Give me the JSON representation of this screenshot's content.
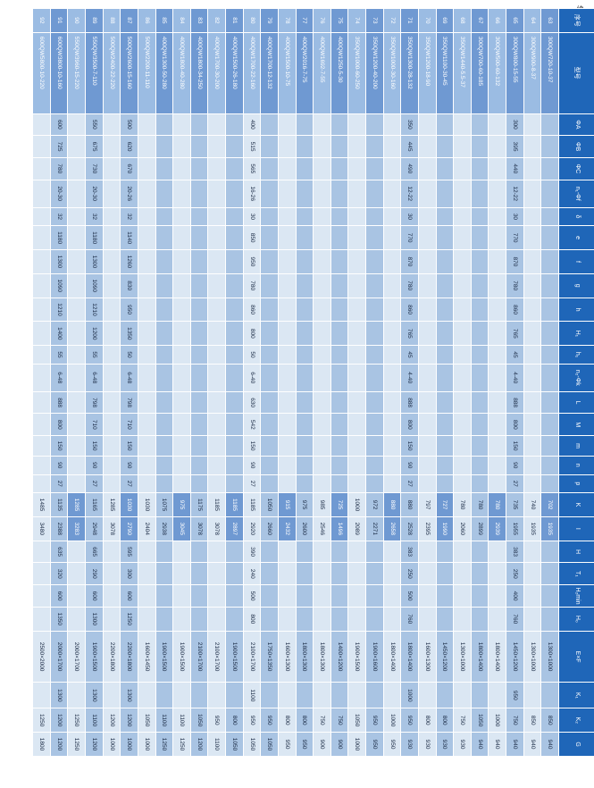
{
  "page_label": "续表",
  "table": {
    "headers": [
      "序号",
      "型号",
      "ΦA",
      "ΦB",
      "ΦC",
      "n₁-Φf",
      "δ",
      "e",
      "f",
      "g",
      "h",
      "H₁",
      "h₁",
      "n₂-Φk",
      "L",
      "M",
      "m",
      "n",
      "p",
      "K",
      "I",
      "H",
      "T₁",
      "H₂min",
      "H₀",
      "E×F",
      "K₁",
      "K₂",
      "G"
    ],
    "rows": [
      [
        "63",
        "300QW720-10-37",
        "",
        "",
        "",
        "",
        "",
        "",
        "",
        "",
        "",
        "",
        "",
        "",
        "",
        "",
        "",
        "",
        "",
        "702",
        "1935",
        "",
        "",
        "",
        "",
        "1300×1000",
        "",
        "850",
        "940"
      ],
      [
        "64",
        "300QW900-8-37",
        "",
        "",
        "",
        "",
        "",
        "",
        "",
        "",
        "",
        "",
        "",
        "",
        "",
        "",
        "",
        "",
        "",
        "740",
        "1935",
        "",
        "",
        "",
        "",
        "1300×1000",
        "",
        "850",
        "940"
      ],
      [
        "65",
        "300QW800-15-55",
        "300",
        "395",
        "440",
        "12-22",
        "30",
        "770",
        "870",
        "780",
        "860",
        "765",
        "45",
        "4-40",
        "888",
        "800",
        "150",
        "90",
        "27",
        "735",
        "1955",
        "383",
        "250",
        "400",
        "760",
        "1450×1200",
        "950",
        "750",
        "940"
      ],
      [
        "66",
        "300QW500-60-132",
        "",
        "",
        "",
        "",
        "",
        "",
        "",
        "",
        "",
        "",
        "",
        "",
        "",
        "",
        "",
        "",
        "",
        "780",
        "2939",
        "",
        "",
        "",
        "",
        "1800×1400",
        "",
        "1000",
        "940"
      ],
      [
        "67",
        "300QW700-60-185",
        "",
        "",
        "",
        "",
        "",
        "",
        "",
        "",
        "",
        "",
        "",
        "",
        "",
        "",
        "",
        "",
        "",
        "780",
        "2899",
        "",
        "",
        "",
        "",
        "1800×1400",
        "",
        "1050",
        "940"
      ],
      [
        "68",
        "350QW1440-5.5-37",
        "",
        "",
        "",
        "",
        "",
        "",
        "",
        "",
        "",
        "",
        "",
        "",
        "",
        "",
        "",
        "",
        "",
        "780",
        "2060",
        "",
        "",
        "",
        "",
        "1300×1000",
        "",
        "750",
        "930"
      ],
      [
        "69",
        "350QW1100-30-45",
        "",
        "",
        "",
        "",
        "",
        "",
        "",
        "",
        "",
        "",
        "",
        "",
        "",
        "",
        "",
        "",
        "",
        "727",
        "1990",
        "",
        "",
        "",
        "",
        "1450×1200",
        "",
        "800",
        "930"
      ],
      [
        "70",
        "350QW1200-18-90",
        "",
        "",
        "",
        "",
        "",
        "",
        "",
        "",
        "",
        "",
        "",
        "",
        "",
        "",
        "",
        "",
        "",
        "797",
        "2395",
        "",
        "",
        "",
        "",
        "1600×1300",
        "",
        "800",
        "930"
      ],
      [
        "71",
        "350QW1300-28-132",
        "350",
        "445",
        "490",
        "12-22",
        "30",
        "770",
        "870",
        "780",
        "860",
        "765",
        "45",
        "4-40",
        "888",
        "800",
        "150",
        "90",
        "27",
        "880",
        "2528",
        "383",
        "250",
        "500",
        "760",
        "1800×1400",
        "1000",
        "950",
        "930"
      ],
      [
        "72",
        "350QW1000-30-160",
        "",
        "",
        "",
        "",
        "",
        "",
        "",
        "",
        "",
        "",
        "",
        "",
        "",
        "",
        "",
        "",
        "",
        "880",
        "2658",
        "",
        "",
        "",
        "",
        "1800×1400",
        "",
        "1000",
        "950"
      ],
      [
        "73",
        "350QW1200-40-200",
        "",
        "",
        "",
        "",
        "",
        "",
        "",
        "",
        "",
        "",
        "",
        "",
        "",
        "",
        "",
        "",
        "",
        "972",
        "2271",
        "",
        "",
        "",
        "",
        "1900×1600",
        "",
        "950",
        "950"
      ],
      [
        "74",
        "350QW1000-60-250",
        "",
        "",
        "",
        "",
        "",
        "",
        "",
        "",
        "",
        "",
        "",
        "",
        "",
        "",
        "",
        "",
        "",
        "1000",
        "2089",
        "",
        "",
        "",
        "",
        "1900×1500",
        "",
        "1050",
        "1000"
      ],
      [
        "75",
        "400QW1250-5-30",
        "",
        "",
        "",
        "",
        "",
        "",
        "",
        "",
        "",
        "",
        "",
        "",
        "",
        "",
        "",
        "",
        "",
        "725",
        "1496",
        "",
        "",
        "",
        "",
        "1400×1200",
        "",
        "750",
        "900"
      ],
      [
        "76",
        "400QW1692-7-55",
        "",
        "",
        "",
        "",
        "",
        "",
        "",
        "",
        "",
        "",
        "",
        "",
        "",
        "",
        "",
        "",
        "",
        "985",
        "2546",
        "",
        "",
        "",
        "",
        "1800×1300",
        "",
        "750",
        "900"
      ],
      [
        "77",
        "400QW2016-7-75",
        "",
        "",
        "",
        "",
        "",
        "",
        "",
        "",
        "",
        "",
        "",
        "",
        "",
        "",
        "",
        "",
        "",
        "975",
        "2600",
        "",
        "",
        "",
        "",
        "1800×1300",
        "",
        "800",
        "950"
      ],
      [
        "78",
        "400QW1500-10-75",
        "",
        "",
        "",
        "",
        "",
        "",
        "",
        "",
        "",
        "",
        "",
        "",
        "",
        "",
        "",
        "",
        "",
        "915",
        "2432",
        "",
        "",
        "",
        "",
        "1600×1300",
        "",
        "800",
        "950"
      ],
      [
        "79",
        "400QW1700-12-132",
        "",
        "",
        "",
        "",
        "",
        "",
        "",
        "",
        "",
        "",
        "",
        "",
        "",
        "",
        "",
        "",
        "",
        "1050",
        "2660",
        "",
        "",
        "",
        "",
        "1750×1350",
        "",
        "950",
        "1050"
      ],
      [
        "80",
        "400QW1700-22-160",
        "400",
        "515",
        "565",
        "16-26",
        "30",
        "850",
        "950",
        "780",
        "860",
        "800",
        "50",
        "6-40",
        "630",
        "542",
        "150",
        "90",
        "27",
        "1185",
        "2920",
        "390",
        "240",
        "500",
        "800",
        "2100×1700",
        "1100",
        "950",
        "1050"
      ],
      [
        "81",
        "400QW1500-26-180",
        "",
        "",
        "",
        "",
        "",
        "",
        "",
        "",
        "",
        "",
        "",
        "",
        "",
        "",
        "",
        "",
        "",
        "1185",
        "2897",
        "",
        "",
        "",
        "",
        "1900×1500",
        "",
        "800",
        "1050"
      ],
      [
        "82",
        "400QW1700-30-200",
        "",
        "",
        "",
        "",
        "",
        "",
        "",
        "",
        "",
        "",
        "",
        "",
        "",
        "",
        "",
        "",
        "",
        "1185",
        "3078",
        "",
        "",
        "",
        "",
        "2100×1700",
        "",
        "950",
        "1100"
      ],
      [
        "83",
        "400QW1800-34-250",
        "",
        "",
        "",
        "",
        "",
        "",
        "",
        "",
        "",
        "",
        "",
        "",
        "",
        "",
        "",
        "",
        "",
        "1175",
        "3078",
        "",
        "",
        "",
        "",
        "2100×1700",
        "",
        "1050",
        "1200"
      ],
      [
        "84",
        "400QW1800-40-280",
        "",
        "",
        "",
        "",
        "",
        "",
        "",
        "",
        "",
        "",
        "",
        "",
        "",
        "",
        "",
        "",
        "",
        "975",
        "3045",
        "",
        "",
        "",
        "",
        "1900×1500",
        "",
        "1100",
        "1250"
      ],
      [
        "85",
        "400QW1300-50-280",
        "",
        "",
        "",
        "",
        "",
        "",
        "",
        "",
        "",
        "",
        "",
        "",
        "",
        "",
        "",
        "",
        "",
        "1075",
        "2938",
        "",
        "",
        "",
        "",
        "1900×1500",
        "",
        "1100",
        "1250"
      ],
      [
        "86",
        "500QW2200-11-110",
        "",
        "",
        "",
        "",
        "",
        "",
        "",
        "",
        "",
        "",
        "",
        "",
        "",
        "",
        "",
        "",
        "",
        "1030",
        "2404",
        "",
        "",
        "",
        "",
        "1600×1450",
        "",
        "1050",
        "1000"
      ],
      [
        "87",
        "500QW2600-15-160",
        "500",
        "620",
        "670",
        "20-26",
        "32",
        "1140",
        "1260",
        "830",
        "950",
        "1350",
        "50",
        "6-48",
        "798",
        "710",
        "150",
        "90",
        "27",
        "1030",
        "2790",
        "595",
        "300",
        "600",
        "1250",
        "2200×1800",
        "1300",
        "1200",
        "1000"
      ],
      [
        "88",
        "500QW2400-22-220",
        "",
        "",
        "",
        "",
        "",
        "",
        "",
        "",
        "",
        "",
        "",
        "",
        "",
        "",
        "",
        "",
        "",
        "1285",
        "3078",
        "",
        "",
        "",
        "",
        "2200×1800",
        "",
        "1200",
        "1000"
      ],
      [
        "89",
        "550QW3500-7-110",
        "550",
        "675",
        "730",
        "20-30",
        "32",
        "1180",
        "1300",
        "1090",
        "1210",
        "1200",
        "55",
        "6-48",
        "798",
        "710",
        "150",
        "90",
        "27",
        "1165",
        "2948",
        "665",
        "290",
        "600",
        "1300",
        "1900×1500",
        "1300",
        "1100",
        "1200"
      ],
      [
        "90",
        "550QW3960-15-220",
        "",
        "",
        "",
        "",
        "",
        "",
        "",
        "",
        "",
        "",
        "",
        "",
        "",
        "",
        "",
        "",
        "",
        "1285",
        "3283",
        "",
        "",
        "",
        "",
        "2000×1700",
        "",
        "1250",
        "1250"
      ],
      [
        "91",
        "600QW3800-10-160",
        "600",
        "725",
        "780",
        "20-30",
        "32",
        "1180",
        "1300",
        "1090",
        "1210",
        "1400",
        "55",
        "6-48",
        "888",
        "800",
        "150",
        "90",
        "27",
        "1135",
        "2388",
        "635",
        "320",
        "600",
        "1350",
        "2000×1700",
        "1300",
        "1200",
        "1200"
      ],
      [
        "92",
        "600QW5800-10-220",
        "",
        "",
        "",
        "",
        "",
        "",
        "",
        "",
        "",
        "",
        "",
        "",
        "",
        "",
        "",
        "",
        "",
        "1485",
        "3480",
        "",
        "",
        "",
        "",
        "2500×2000",
        "",
        "1250",
        "1800"
      ]
    ]
  }
}
